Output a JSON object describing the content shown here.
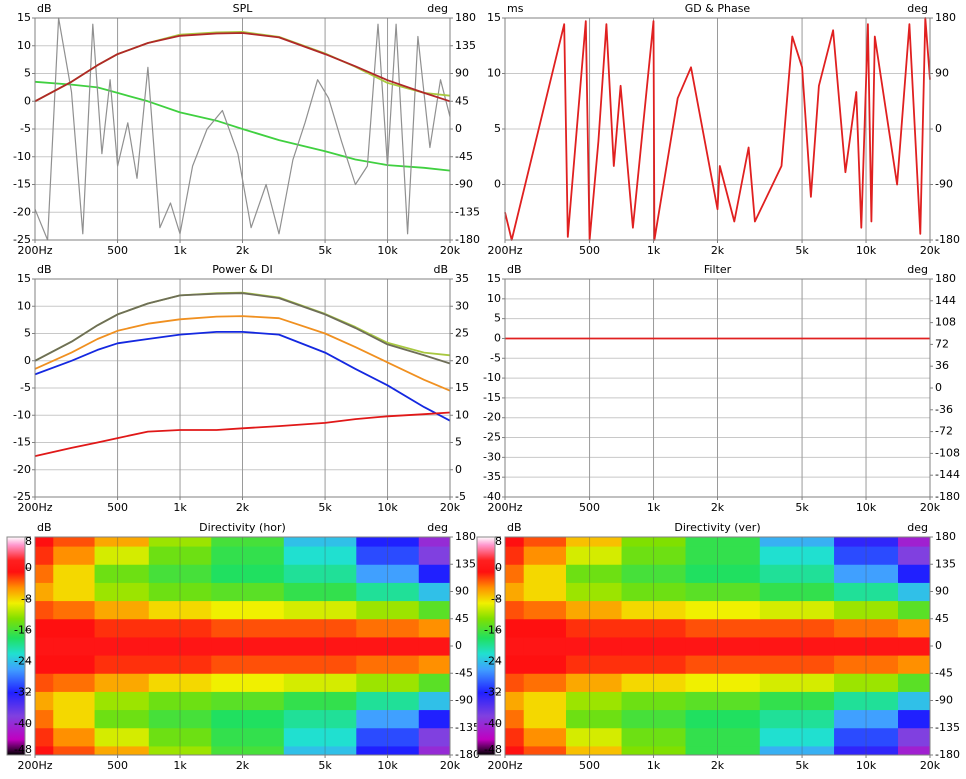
{
  "chart_data": [
    {
      "type": "line",
      "title": "SPL",
      "ylabel": "dB",
      "y2label": "deg",
      "xlog": true,
      "grid": true,
      "xlim": [
        200,
        20000
      ],
      "xticks": [
        {
          "value": 200,
          "label": "200Hz"
        },
        500,
        {
          "value": 1000,
          "label": "1k"
        },
        {
          "value": 2000,
          "label": "2k"
        },
        {
          "value": 5000,
          "label": "5k"
        },
        {
          "value": 10000,
          "label": "10k"
        },
        {
          "value": 20000,
          "label": "20k"
        }
      ],
      "ylim": [
        -25,
        15
      ],
      "yticks": [
        -25,
        -20,
        -15,
        -10,
        -5,
        0,
        5,
        10,
        15
      ],
      "y2lim": [
        -180,
        180
      ],
      "y2ticks": [
        -180,
        -135,
        -90,
        -45,
        0,
        45,
        90,
        135,
        180
      ],
      "x": [
        200,
        300,
        400,
        500,
        700,
        1000,
        1500,
        2000,
        3000,
        5000,
        7000,
        10000,
        15000,
        20000
      ],
      "series": [
        {
          "color": "#40d040",
          "values": [
            3.5,
            3,
            2.5,
            1.5,
            0,
            -2,
            -3.5,
            -5,
            -7,
            -9,
            -10.5,
            -11.5,
            -12,
            -12.5
          ]
        },
        {
          "color": "#909090",
          "axis": "y2",
          "x": [
            200,
            230,
            260,
            300,
            340,
            380,
            420,
            460,
            500,
            560,
            620,
            700,
            800,
            900,
            1000,
            1150,
            1350,
            1600,
            1900,
            2200,
            2600,
            3000,
            3500,
            4000,
            4600,
            5200,
            6000,
            7000,
            8000,
            9000,
            10000,
            11000,
            12500,
            14000,
            16000,
            18000,
            20000
          ],
          "values": [
            -130,
            -180,
            180,
            60,
            -170,
            170,
            -40,
            80,
            -60,
            10,
            -80,
            100,
            -160,
            -120,
            -170,
            -60,
            0,
            30,
            -40,
            -160,
            -90,
            -170,
            -50,
            10,
            80,
            50,
            -20,
            -90,
            -60,
            170,
            -60,
            170,
            -170,
            150,
            -30,
            80,
            20
          ]
        },
        {
          "color": "#a8c840",
          "values": [
            0,
            3.5,
            6.5,
            8.5,
            10.5,
            12,
            12.4,
            12.5,
            11.6,
            8.6,
            6.2,
            3.3,
            1.5,
            1
          ]
        },
        {
          "color": "#b02828",
          "values": [
            0,
            3.5,
            6.5,
            8.5,
            10.5,
            11.8,
            12.2,
            12.3,
            11.5,
            8.5,
            6.3,
            3.8,
            1.5,
            0
          ]
        }
      ]
    },
    {
      "type": "line",
      "title": "GD & Phase",
      "ylabel": "ms",
      "y2label": "deg",
      "xlog": true,
      "grid": true,
      "xlim": [
        200,
        20000
      ],
      "xticks": [
        {
          "value": 200,
          "label": "200Hz"
        },
        500,
        {
          "value": 1000,
          "label": "1k"
        },
        {
          "value": 2000,
          "label": "2k"
        },
        {
          "value": 5000,
          "label": "5k"
        },
        {
          "value": 10000,
          "label": "10k"
        },
        {
          "value": 20000,
          "label": "20k"
        }
      ],
      "ylim": [
        -5,
        15
      ],
      "yticks": [
        0,
        5,
        10,
        15
      ],
      "y2lim": [
        -180,
        180
      ],
      "y2ticks": [
        -180,
        -90,
        0,
        90,
        180
      ],
      "series": [
        {
          "color": "#e02020",
          "axis": "y2",
          "x": [
            200,
            215,
            380,
            395,
            480,
            500,
            550,
            600,
            650,
            700,
            800,
            1000,
            1010,
            1300,
            1500,
            2000,
            2050,
            2400,
            2800,
            3000,
            4000,
            4500,
            5000,
            5500,
            6000,
            7000,
            8000,
            9000,
            9500,
            10200,
            10600,
            11000,
            14000,
            16000,
            18000,
            19000,
            20000
          ],
          "values": [
            -135,
            -180,
            170,
            -175,
            175,
            -180,
            -20,
            170,
            -60,
            70,
            -160,
            175,
            -180,
            50,
            100,
            -130,
            -60,
            -150,
            -30,
            -150,
            -60,
            150,
            100,
            -110,
            70,
            160,
            -70,
            60,
            -160,
            170,
            -150,
            150,
            -90,
            170,
            -170,
            180,
            80
          ]
        }
      ]
    },
    {
      "type": "line",
      "title": "Power & DI",
      "ylabel": "dB",
      "y2label": "dB",
      "xlog": true,
      "grid": true,
      "xlim": [
        200,
        20000
      ],
      "xticks": [
        {
          "value": 200,
          "label": "200Hz"
        },
        500,
        {
          "value": 1000,
          "label": "1k"
        },
        {
          "value": 2000,
          "label": "2k"
        },
        {
          "value": 5000,
          "label": "5k"
        },
        {
          "value": 10000,
          "label": "10k"
        },
        {
          "value": 20000,
          "label": "20k"
        }
      ],
      "ylim": [
        -25,
        15
      ],
      "yticks": [
        -25,
        -20,
        -15,
        -10,
        -5,
        0,
        5,
        10,
        15
      ],
      "y2lim": [
        -5,
        35
      ],
      "y2ticks": [
        -5,
        0,
        5,
        10,
        15,
        20,
        25,
        30,
        35
      ],
      "x": [
        200,
        300,
        400,
        500,
        700,
        1000,
        1500,
        2000,
        3000,
        5000,
        7000,
        10000,
        15000,
        20000
      ],
      "series": [
        {
          "color": "#a8c840",
          "values": [
            0,
            3.5,
            6.5,
            8.5,
            10.5,
            12,
            12.4,
            12.5,
            11.6,
            8.6,
            6.2,
            3.3,
            1.5,
            1
          ]
        },
        {
          "color": "#6e6e58",
          "values": [
            0,
            3.5,
            6.5,
            8.5,
            10.5,
            12,
            12.3,
            12.4,
            11.5,
            8.5,
            6,
            3,
            1,
            -0.5
          ]
        },
        {
          "color": "#f09020",
          "values": [
            -1.5,
            1.5,
            4,
            5.5,
            6.8,
            7.6,
            8.1,
            8.2,
            7.8,
            5,
            2.5,
            -0.3,
            -3.5,
            -5.5
          ]
        },
        {
          "color": "#1428e0",
          "values": [
            -2.5,
            0,
            2,
            3.2,
            4,
            4.8,
            5.3,
            5.3,
            4.8,
            1.5,
            -1.5,
            -4.5,
            -8.5,
            -11
          ]
        },
        {
          "color": "#e01818",
          "axis": "y2",
          "values": [
            2.5,
            4,
            5,
            5.8,
            7,
            7.3,
            7.3,
            7.6,
            8,
            8.6,
            9.3,
            9.8,
            10.2,
            10.5
          ]
        }
      ]
    },
    {
      "type": "line",
      "title": "Filter",
      "ylabel": "dB",
      "y2label": "deg",
      "xlog": true,
      "grid": true,
      "xlim": [
        200,
        20000
      ],
      "xticks": [
        {
          "value": 200,
          "label": "200Hz"
        },
        500,
        {
          "value": 1000,
          "label": "1k"
        },
        {
          "value": 2000,
          "label": "2k"
        },
        {
          "value": 5000,
          "label": "5k"
        },
        {
          "value": 10000,
          "label": "10k"
        },
        {
          "value": 20000,
          "label": "20k"
        }
      ],
      "ylim": [
        -40,
        15
      ],
      "yticks": [
        -40,
        -35,
        -30,
        -25,
        -20,
        -15,
        -10,
        -5,
        0,
        5,
        10,
        15
      ],
      "y2lim": [
        -180,
        180
      ],
      "y2ticks": [
        -180,
        -144,
        -108,
        -72,
        -36,
        0,
        36,
        72,
        108,
        144,
        180
      ],
      "x": [
        200,
        20000
      ],
      "series": [
        {
          "color": "#e02020",
          "values": [
            0,
            0
          ]
        }
      ]
    },
    {
      "type": "heatmap",
      "title": "Directivity (hor)",
      "ylabel": "dB",
      "y2label": "deg",
      "xlog": true,
      "xlim": [
        200,
        20000
      ],
      "xticks": [
        {
          "value": 200,
          "label": "200Hz"
        },
        500,
        {
          "value": 1000,
          "label": "1k"
        },
        {
          "value": 2000,
          "label": "2k"
        },
        {
          "value": 5000,
          "label": "5k"
        },
        {
          "value": 10000,
          "label": "10k"
        },
        {
          "value": 20000,
          "label": "20k"
        }
      ],
      "y2lim": [
        -180,
        180
      ],
      "y2ticks": [
        -180,
        -135,
        -90,
        -45,
        0,
        45,
        90,
        135,
        180
      ],
      "colorbar": {
        "lim": [
          -48,
          8
        ],
        "ticks": [
          -48,
          -40,
          -32,
          -24,
          -16,
          -8,
          0,
          8
        ]
      },
      "x": [
        200,
        300,
        500,
        1000,
        2000,
        5000,
        10000,
        20000
      ],
      "y": [
        -180,
        -150,
        -120,
        -90,
        -60,
        -30,
        0,
        30,
        60,
        90,
        120,
        150,
        180
      ],
      "z": [
        [
          -1,
          -3,
          -6,
          -12,
          -16,
          -24,
          -32,
          -40
        ],
        [
          -2,
          -5,
          -10,
          -14,
          -17,
          -22,
          -30,
          -38
        ],
        [
          -4,
          -8,
          -14,
          -16,
          -18,
          -20,
          -26,
          -32
        ],
        [
          -6,
          -8,
          -12,
          -14,
          -15,
          -17,
          -20,
          -24
        ],
        [
          -3,
          -4,
          -6,
          -8,
          -9,
          -10,
          -12,
          -15
        ],
        [
          -1,
          -1,
          -2,
          -2,
          -3,
          -3,
          -4,
          -5
        ],
        [
          0,
          0,
          0,
          0,
          0,
          0,
          0,
          0
        ],
        [
          -1,
          -1,
          -2,
          -2,
          -3,
          -3,
          -4,
          -5
        ],
        [
          -3,
          -4,
          -6,
          -8,
          -9,
          -10,
          -12,
          -15
        ],
        [
          -6,
          -8,
          -12,
          -14,
          -15,
          -17,
          -20,
          -24
        ],
        [
          -4,
          -8,
          -14,
          -16,
          -18,
          -20,
          -26,
          -32
        ],
        [
          -2,
          -5,
          -10,
          -14,
          -17,
          -22,
          -30,
          -38
        ],
        [
          -1,
          -3,
          -6,
          -12,
          -16,
          -24,
          -32,
          -40
        ]
      ]
    },
    {
      "type": "heatmap",
      "title": "Directivity (ver)",
      "ylabel": "dB",
      "y2label": "deg",
      "xlog": true,
      "xlim": [
        200,
        20000
      ],
      "xticks": [
        {
          "value": 200,
          "label": "200Hz"
        },
        500,
        {
          "value": 1000,
          "label": "1k"
        },
        {
          "value": 2000,
          "label": "2k"
        },
        {
          "value": 5000,
          "label": "5k"
        },
        {
          "value": 10000,
          "label": "10k"
        },
        {
          "value": 20000,
          "label": "20k"
        }
      ],
      "y2lim": [
        -180,
        180
      ],
      "y2ticks": [
        -180,
        -135,
        -90,
        -45,
        0,
        45,
        90,
        135,
        180
      ],
      "colorbar": {
        "lim": [
          -48,
          8
        ],
        "ticks": [
          -48,
          -40,
          -32,
          -24,
          -16,
          -8,
          0,
          8
        ]
      },
      "x": [
        200,
        300,
        500,
        1000,
        2000,
        5000,
        10000,
        20000
      ],
      "y": [
        -180,
        -150,
        -120,
        -90,
        -60,
        -30,
        0,
        30,
        60,
        90,
        120,
        150,
        180
      ],
      "z": [
        [
          -1,
          -3,
          -7,
          -13,
          -17,
          -25,
          -33,
          -41
        ],
        [
          -2,
          -5,
          -10,
          -14,
          -17,
          -22,
          -30,
          -38
        ],
        [
          -4,
          -8,
          -14,
          -16,
          -18,
          -20,
          -26,
          -32
        ],
        [
          -6,
          -8,
          -12,
          -14,
          -15,
          -17,
          -20,
          -24
        ],
        [
          -3,
          -4,
          -6,
          -8,
          -9,
          -10,
          -12,
          -15
        ],
        [
          -1,
          -1,
          -2,
          -2,
          -3,
          -3,
          -4,
          -5
        ],
        [
          0,
          0,
          0,
          0,
          0,
          0,
          0,
          0
        ],
        [
          -1,
          -1,
          -2,
          -2,
          -3,
          -3,
          -4,
          -5
        ],
        [
          -3,
          -4,
          -6,
          -8,
          -9,
          -10,
          -12,
          -15
        ],
        [
          -6,
          -8,
          -12,
          -14,
          -15,
          -17,
          -20,
          -24
        ],
        [
          -4,
          -8,
          -14,
          -16,
          -18,
          -20,
          -26,
          -32
        ],
        [
          -2,
          -5,
          -10,
          -14,
          -17,
          -22,
          -30,
          -38
        ],
        [
          -1,
          -3,
          -7,
          -13,
          -17,
          -25,
          -33,
          -41
        ]
      ]
    }
  ]
}
